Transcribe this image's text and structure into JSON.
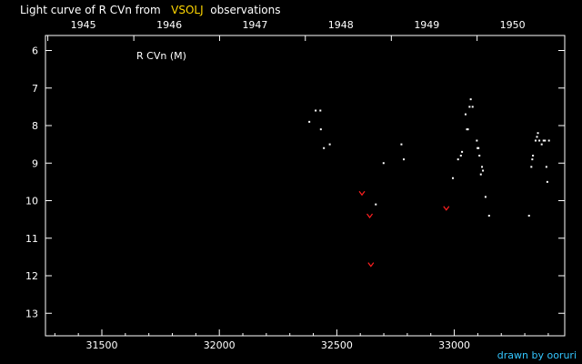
{
  "page": {
    "title_prefix": "Light curve of R CVn from",
    "title_source": "VSOLJ",
    "title_suffix": "observations",
    "credit": "drawn by ooruri"
  },
  "chart_data": {
    "type": "scatter",
    "star_label": "R CVn (M)",
    "xlim": [
      31260,
      33470
    ],
    "ylim_inverted": [
      5.6,
      13.6
    ],
    "x_ticks": [
      31500,
      32000,
      32500,
      33000
    ],
    "x_tick_labels": [
      "31500",
      "32000",
      "32500",
      "33000"
    ],
    "year_ticks": [
      {
        "jd": 31270,
        "label": "1945"
      },
      {
        "jd": 31636,
        "label": "1946"
      },
      {
        "jd": 32001,
        "label": "1947"
      },
      {
        "jd": 32366,
        "label": "1948"
      },
      {
        "jd": 32732,
        "label": "1949"
      },
      {
        "jd": 33097,
        "label": "1950"
      }
    ],
    "year_axis_labels_at_jd": [
      31270,
      31636,
      32001,
      32366,
      32732,
      33097
    ],
    "y_ticks": [
      6,
      7,
      8,
      9,
      10,
      11,
      12,
      13
    ],
    "y_tick_labels": [
      "6",
      "7",
      "8",
      "9",
      "10",
      "11",
      "12",
      "13"
    ],
    "colors": {
      "observation": "#ffffff",
      "upper_limit": "#ff2020",
      "source": "#ffd700",
      "credit": "#33c6ff",
      "frame": "#ffffff"
    },
    "series": [
      {
        "kind": "observation",
        "points": [
          [
            32383,
            7.9
          ],
          [
            32410,
            7.6
          ],
          [
            32430,
            7.6
          ],
          [
            32432,
            8.1
          ],
          [
            32445,
            8.6
          ],
          [
            32470,
            8.5
          ],
          [
            32666,
            10.1
          ],
          [
            32699,
            9.0
          ],
          [
            32775,
            8.5
          ],
          [
            32785,
            8.9
          ],
          [
            32994,
            9.4
          ],
          [
            33016,
            8.9
          ],
          [
            33028,
            8.8
          ],
          [
            33033,
            8.7
          ],
          [
            33048,
            7.7
          ],
          [
            33054,
            8.1
          ],
          [
            33058,
            8.1
          ],
          [
            33065,
            7.5
          ],
          [
            33070,
            7.3
          ],
          [
            33078,
            7.5
          ],
          [
            33096,
            8.4
          ],
          [
            33099,
            8.6
          ],
          [
            33103,
            8.6
          ],
          [
            33107,
            8.8
          ],
          [
            33113,
            9.3
          ],
          [
            33118,
            9.1
          ],
          [
            33122,
            9.2
          ],
          [
            33133,
            9.9
          ],
          [
            33148,
            10.4
          ],
          [
            33318,
            10.4
          ],
          [
            33328,
            9.1
          ],
          [
            33332,
            8.9
          ],
          [
            33335,
            8.8
          ],
          [
            33346,
            8.4
          ],
          [
            33352,
            8.3
          ],
          [
            33356,
            8.2
          ],
          [
            33362,
            8.4
          ],
          [
            33372,
            8.5
          ],
          [
            33380,
            8.4
          ],
          [
            33386,
            8.4
          ],
          [
            33392,
            9.1
          ],
          [
            33396,
            9.5
          ],
          [
            33403,
            8.4
          ]
        ]
      },
      {
        "kind": "upper_limit",
        "points": [
          [
            32607,
            9.8
          ],
          [
            32640,
            10.4
          ],
          [
            32645,
            11.7
          ],
          [
            32966,
            10.2
          ]
        ]
      }
    ]
  }
}
